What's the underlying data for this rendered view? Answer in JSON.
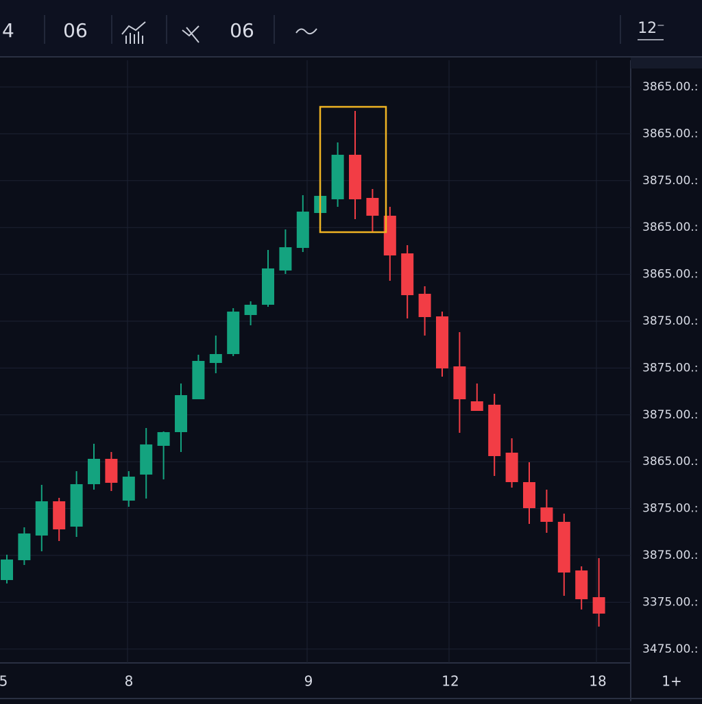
{
  "toolbar": {
    "items": [
      "4",
      "06",
      "06",
      "12⁻"
    ]
  },
  "chart_data": {
    "type": "candlestick",
    "x_labels": [
      "5",
      "8",
      "9",
      "12",
      "18",
      "1+"
    ],
    "price_labels": [
      "3865.00.:",
      "3865.00.:",
      "3875.00.:",
      "3865.00.:",
      "3865.00.:",
      "3875.00.:",
      "3875.00.:",
      "3875.00.:",
      "3865.00.:",
      "3875.00.:",
      "3875.00.:",
      "3375.00.:",
      "3475.00.:"
    ],
    "up_color": "#14a37f",
    "down_color": "#f23d45",
    "ylim": [
      0,
      880
    ],
    "candles": [
      {
        "open": 121,
        "high": 158,
        "low": 116,
        "close": 151
      },
      {
        "open": 150,
        "high": 198,
        "low": 143,
        "close": 189
      },
      {
        "open": 186,
        "high": 260,
        "low": 163,
        "close": 236
      },
      {
        "open": 236,
        "high": 241,
        "low": 178,
        "close": 195
      },
      {
        "open": 199,
        "high": 280,
        "low": 184,
        "close": 261
      },
      {
        "open": 261,
        "high": 320,
        "low": 253,
        "close": 298
      },
      {
        "open": 298,
        "high": 308,
        "low": 251,
        "close": 263
      },
      {
        "open": 237,
        "high": 280,
        "low": 228,
        "close": 272
      },
      {
        "open": 275,
        "high": 343,
        "low": 240,
        "close": 319
      },
      {
        "open": 317,
        "high": 338,
        "low": 268,
        "close": 337
      },
      {
        "open": 337,
        "high": 408,
        "low": 308,
        "close": 391
      },
      {
        "open": 385,
        "high": 450,
        "low": 385,
        "close": 441
      },
      {
        "open": 438,
        "high": 478,
        "low": 423,
        "close": 451
      },
      {
        "open": 451,
        "high": 518,
        "low": 448,
        "close": 513
      },
      {
        "open": 508,
        "high": 528,
        "low": 493,
        "close": 523
      },
      {
        "open": 523,
        "high": 603,
        "low": 520,
        "close": 576
      },
      {
        "open": 573,
        "high": 633,
        "low": 568,
        "close": 607
      },
      {
        "open": 606,
        "high": 683,
        "low": 600,
        "close": 659
      },
      {
        "open": 657,
        "high": 703,
        "low": 638,
        "close": 682
      },
      {
        "open": 677,
        "high": 760,
        "low": 666,
        "close": 742
      },
      {
        "open": 742,
        "high": 806,
        "low": 648,
        "close": 677
      },
      {
        "open": 679,
        "high": 692,
        "low": 630,
        "close": 653
      },
      {
        "open": 653,
        "high": 666,
        "low": 558,
        "close": 595
      },
      {
        "open": 598,
        "high": 610,
        "low": 503,
        "close": 537
      },
      {
        "open": 539,
        "high": 550,
        "low": 478,
        "close": 505
      },
      {
        "open": 506,
        "high": 513,
        "low": 418,
        "close": 430
      },
      {
        "open": 433,
        "high": 483,
        "low": 336,
        "close": 385
      },
      {
        "open": 382,
        "high": 408,
        "low": 368,
        "close": 368
      },
      {
        "open": 377,
        "high": 393,
        "low": 273,
        "close": 302
      },
      {
        "open": 307,
        "high": 328,
        "low": 256,
        "close": 264
      },
      {
        "open": 264,
        "high": 293,
        "low": 203,
        "close": 226
      },
      {
        "open": 227,
        "high": 253,
        "low": 190,
        "close": 206
      },
      {
        "open": 206,
        "high": 218,
        "low": 98,
        "close": 132
      },
      {
        "open": 135,
        "high": 141,
        "low": 78,
        "close": 93
      },
      {
        "open": 96,
        "high": 153,
        "low": 53,
        "close": 72
      }
    ]
  }
}
